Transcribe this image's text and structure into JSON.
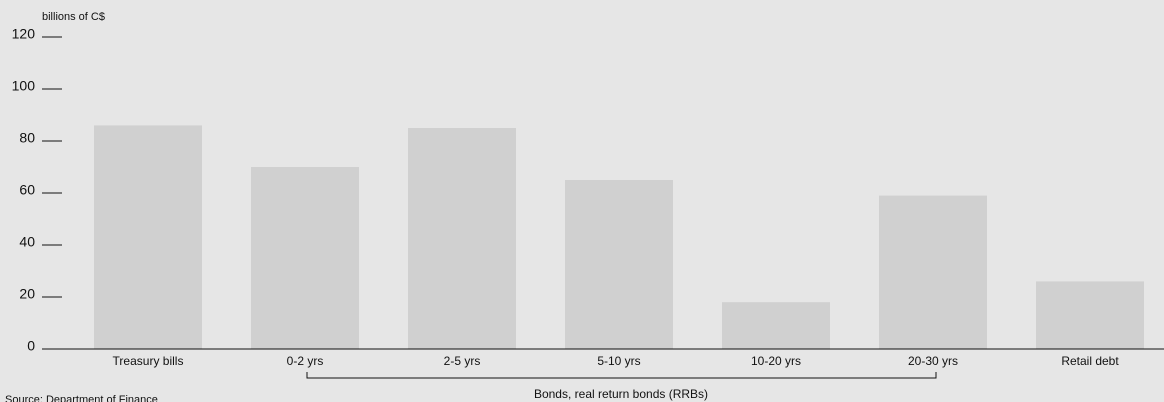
{
  "chart_data": {
    "type": "bar",
    "y_label": "billions of C$",
    "categories": [
      "Treasury bills",
      "0-2 yrs",
      "2-5 yrs",
      "5-10 yrs",
      "10-20 yrs",
      "20-30 yrs",
      "Retail debt"
    ],
    "values": [
      86,
      70,
      85,
      65,
      18,
      59,
      26
    ],
    "color": "#d0d0d0",
    "ylim": [
      0,
      120
    ],
    "yticks": [
      0,
      20,
      40,
      60,
      80,
      100,
      120
    ],
    "group_label": "Bonds, real return bonds (RRBs)",
    "source": "Source: Department of Finance"
  }
}
